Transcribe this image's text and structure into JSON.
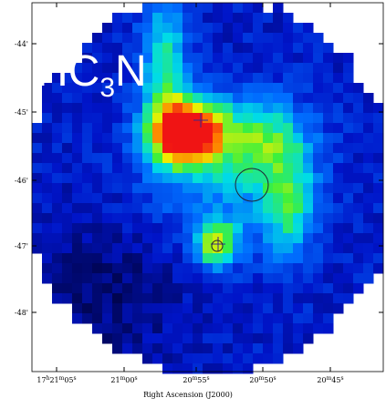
{
  "image": {
    "label_parts": [
      "HC",
      "3",
      "N"
    ],
    "y_tick_labels": [
      "-44'",
      "-45'",
      "-46'",
      "-47'",
      "-48'"
    ],
    "x_tick_labels": [
      {
        "main": "17",
        "h": "h",
        "m1": "21",
        "m": "m",
        "s1": "05",
        "s": "s"
      },
      {
        "main": "",
        "h": "",
        "m1": "21",
        "m": "m",
        "s1": "00",
        "s": "s"
      },
      {
        "main": "",
        "h": "",
        "m1": "20",
        "m": "m",
        "s1": "55",
        "s": "s"
      },
      {
        "main": "",
        "h": "",
        "m1": "20",
        "m": "m",
        "s1": "50",
        "s": "s"
      },
      {
        "main": "",
        "h": "",
        "m1": "20",
        "m": "m",
        "s1": "45",
        "s": "s"
      }
    ],
    "x_axis_title": "Right Ascension (J2000)"
  }
}
